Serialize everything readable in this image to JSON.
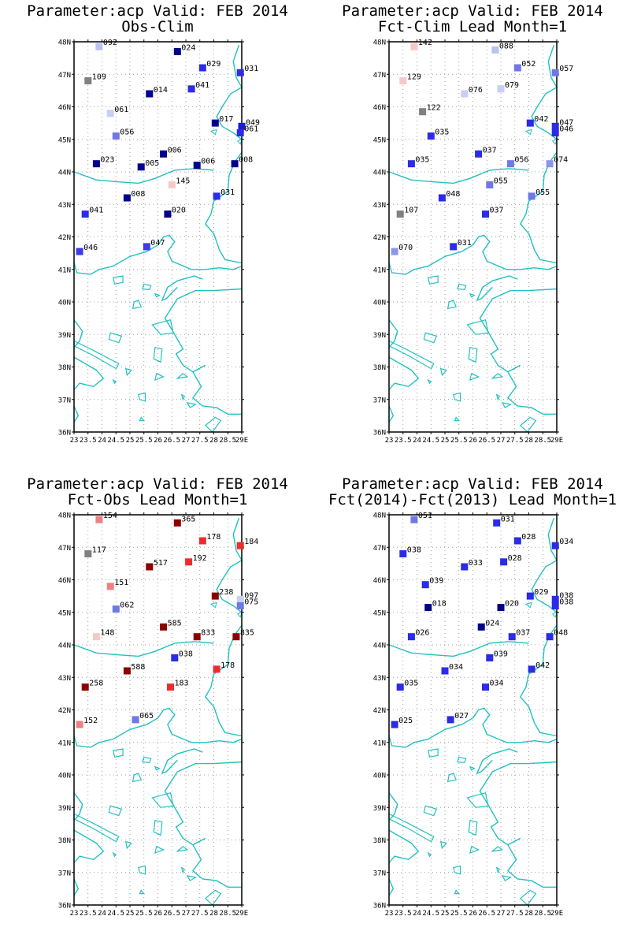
{
  "map": {
    "lon_range": [
      23,
      29
    ],
    "lat_range": [
      36,
      48
    ],
    "lat_ticks": [
      "48N",
      "47N",
      "46N",
      "45N",
      "44N",
      "43N",
      "42N",
      "41N",
      "40N",
      "39N",
      "38N",
      "37N",
      "36N"
    ],
    "lon_ticks": [
      "23",
      "23.5",
      "24",
      "24.5",
      "25",
      "25.5",
      "26",
      "26.5",
      "27",
      "27.5",
      "28",
      "28.5",
      "29E"
    ],
    "coast_color": "#22c1c1",
    "grid_color": "#888888"
  },
  "panels": [
    {
      "title1": "Parameter:acp Valid: FEB 2014",
      "title2": "Obs-Clim",
      "stations": [
        {
          "lon": 23.9,
          "lat": 47.85,
          "label": "092",
          "color": "#b8c3f2"
        },
        {
          "lon": 26.7,
          "lat": 47.7,
          "label": "024",
          "color": "#00008b"
        },
        {
          "lon": 27.6,
          "lat": 47.2,
          "label": "029",
          "color": "#2b2be8"
        },
        {
          "lon": 28.95,
          "lat": 47.05,
          "label": "031",
          "color": "#2b2be8"
        },
        {
          "lon": 23.5,
          "lat": 46.8,
          "label": "109",
          "color": "#808080"
        },
        {
          "lon": 25.7,
          "lat": 46.4,
          "label": "014",
          "color": "#00008b"
        },
        {
          "lon": 27.2,
          "lat": 46.55,
          "label": "041",
          "color": "#2b2be8"
        },
        {
          "lon": 24.3,
          "lat": 45.8,
          "label": "061",
          "color": "#c8cff5"
        },
        {
          "lon": 28.05,
          "lat": 45.5,
          "label": "017",
          "color": "#00008b"
        },
        {
          "lon": 29.0,
          "lat": 45.4,
          "label": "049",
          "color": "#1a1ad8"
        },
        {
          "lon": 24.5,
          "lat": 45.1,
          "label": "056",
          "color": "#6e78e6"
        },
        {
          "lon": 28.95,
          "lat": 45.2,
          "label": "061",
          "color": "#2b2be8"
        },
        {
          "lon": 26.2,
          "lat": 44.55,
          "label": "006",
          "color": "#00008b"
        },
        {
          "lon": 23.8,
          "lat": 44.25,
          "label": "023",
          "color": "#00008b"
        },
        {
          "lon": 25.4,
          "lat": 44.15,
          "label": "005",
          "color": "#00008b"
        },
        {
          "lon": 27.4,
          "lat": 44.2,
          "label": "006",
          "color": "#00008b"
        },
        {
          "lon": 28.75,
          "lat": 44.25,
          "label": "008",
          "color": "#00008b"
        },
        {
          "lon": 26.5,
          "lat": 43.6,
          "label": "145",
          "color": "#f7c8c8"
        },
        {
          "lon": 24.9,
          "lat": 43.2,
          "label": "008",
          "color": "#00008b"
        },
        {
          "lon": 28.1,
          "lat": 43.25,
          "label": "031",
          "color": "#2b2be8"
        },
        {
          "lon": 23.4,
          "lat": 42.7,
          "label": "041",
          "color": "#2b2be8"
        },
        {
          "lon": 26.35,
          "lat": 42.7,
          "label": "020",
          "color": "#00008b"
        },
        {
          "lon": 25.6,
          "lat": 41.7,
          "label": "047",
          "color": "#3b3bea"
        },
        {
          "lon": 23.2,
          "lat": 41.55,
          "label": "046",
          "color": "#3b3bea"
        }
      ]
    },
    {
      "title1": "Parameter:acp Valid: FEB 2014",
      "title2": "Fct-Clim Lead Month=1",
      "stations": [
        {
          "lon": 23.9,
          "lat": 47.85,
          "label": "142",
          "color": "#f7c8c8"
        },
        {
          "lon": 26.8,
          "lat": 47.75,
          "label": "088",
          "color": "#b8c3f2"
        },
        {
          "lon": 27.6,
          "lat": 47.2,
          "label": "052",
          "color": "#6e78e6"
        },
        {
          "lon": 28.95,
          "lat": 47.05,
          "label": "057",
          "color": "#6e78e6"
        },
        {
          "lon": 23.5,
          "lat": 46.8,
          "label": "129",
          "color": "#f7c8c8"
        },
        {
          "lon": 25.7,
          "lat": 46.4,
          "label": "076",
          "color": "#c8cff5"
        },
        {
          "lon": 27.0,
          "lat": 46.55,
          "label": "079",
          "color": "#c8cff5"
        },
        {
          "lon": 24.2,
          "lat": 45.85,
          "label": "122",
          "color": "#808080"
        },
        {
          "lon": 28.05,
          "lat": 45.5,
          "label": "042",
          "color": "#2b2be8"
        },
        {
          "lon": 28.95,
          "lat": 45.4,
          "label": "047",
          "color": "#2b2be8"
        },
        {
          "lon": 24.5,
          "lat": 45.1,
          "label": "035",
          "color": "#2b2be8"
        },
        {
          "lon": 28.95,
          "lat": 45.2,
          "label": "046",
          "color": "#2b2be8"
        },
        {
          "lon": 26.2,
          "lat": 44.55,
          "label": "037",
          "color": "#2b2be8"
        },
        {
          "lon": 23.8,
          "lat": 44.25,
          "label": "035",
          "color": "#2b2be8"
        },
        {
          "lon": 27.35,
          "lat": 44.25,
          "label": "056",
          "color": "#6e78e6"
        },
        {
          "lon": 28.75,
          "lat": 44.25,
          "label": "074",
          "color": "#8c96ea"
        },
        {
          "lon": 26.6,
          "lat": 43.6,
          "label": "055",
          "color": "#6e78e6"
        },
        {
          "lon": 24.9,
          "lat": 43.2,
          "label": "048",
          "color": "#2b2be8"
        },
        {
          "lon": 28.1,
          "lat": 43.25,
          "label": "055",
          "color": "#6e78e6"
        },
        {
          "lon": 23.4,
          "lat": 42.7,
          "label": "107",
          "color": "#808080"
        },
        {
          "lon": 26.45,
          "lat": 42.7,
          "label": "037",
          "color": "#2b2be8"
        },
        {
          "lon": 25.3,
          "lat": 41.7,
          "label": "031",
          "color": "#2b2be8"
        },
        {
          "lon": 23.2,
          "lat": 41.55,
          "label": "070",
          "color": "#8c96ea"
        }
      ]
    },
    {
      "title1": "Parameter:acp Valid: FEB 2014",
      "title2": "Fct-Obs Lead Month=1",
      "stations": [
        {
          "lon": 23.9,
          "lat": 47.85,
          "label": "154",
          "color": "#f08080"
        },
        {
          "lon": 26.7,
          "lat": 47.75,
          "label": "365",
          "color": "#8b0000"
        },
        {
          "lon": 27.6,
          "lat": 47.2,
          "label": "178",
          "color": "#ee2c2c"
        },
        {
          "lon": 28.95,
          "lat": 47.05,
          "label": "184",
          "color": "#ee2c2c"
        },
        {
          "lon": 23.5,
          "lat": 46.8,
          "label": "117",
          "color": "#808080"
        },
        {
          "lon": 25.7,
          "lat": 46.4,
          "label": "517",
          "color": "#8b0000"
        },
        {
          "lon": 27.1,
          "lat": 46.55,
          "label": "192",
          "color": "#ee2c2c"
        },
        {
          "lon": 24.3,
          "lat": 45.8,
          "label": "151",
          "color": "#f08080"
        },
        {
          "lon": 28.05,
          "lat": 45.5,
          "label": "238",
          "color": "#8b0000"
        },
        {
          "lon": 28.95,
          "lat": 45.4,
          "label": "097",
          "color": "#c8cff5"
        },
        {
          "lon": 24.5,
          "lat": 45.1,
          "label": "062",
          "color": "#6e78e6"
        },
        {
          "lon": 28.95,
          "lat": 45.2,
          "label": "075",
          "color": "#6e78e6"
        },
        {
          "lon": 26.2,
          "lat": 44.55,
          "label": "585",
          "color": "#8b0000"
        },
        {
          "lon": 23.8,
          "lat": 44.25,
          "label": "148",
          "color": "#f7c8c8"
        },
        {
          "lon": 27.4,
          "lat": 44.25,
          "label": "833",
          "color": "#8b0000"
        },
        {
          "lon": 28.8,
          "lat": 44.25,
          "label": "835",
          "color": "#8b0000"
        },
        {
          "lon": 26.6,
          "lat": 43.6,
          "label": "038",
          "color": "#2b2be8"
        },
        {
          "lon": 24.9,
          "lat": 43.2,
          "label": "588",
          "color": "#8b0000"
        },
        {
          "lon": 28.1,
          "lat": 43.25,
          "label": "178",
          "color": "#ee2c2c"
        },
        {
          "lon": 23.4,
          "lat": 42.7,
          "label": "258",
          "color": "#8b0000"
        },
        {
          "lon": 26.45,
          "lat": 42.7,
          "label": "183",
          "color": "#ee2c2c"
        },
        {
          "lon": 25.2,
          "lat": 41.7,
          "label": "065",
          "color": "#6e78e6"
        },
        {
          "lon": 23.2,
          "lat": 41.55,
          "label": "152",
          "color": "#f08080"
        }
      ]
    },
    {
      "title1": "Parameter:acp Valid: FEB 2014",
      "title2": "Fct(2014)-Fct(2013) Lead Month=1",
      "stations": [
        {
          "lon": 23.9,
          "lat": 47.85,
          "label": "051",
          "color": "#6e78e6"
        },
        {
          "lon": 26.85,
          "lat": 47.75,
          "label": "031",
          "color": "#2b2be8"
        },
        {
          "lon": 27.6,
          "lat": 47.2,
          "label": "028",
          "color": "#2b2be8"
        },
        {
          "lon": 28.95,
          "lat": 47.05,
          "label": "034",
          "color": "#2b2be8"
        },
        {
          "lon": 23.5,
          "lat": 46.8,
          "label": "038",
          "color": "#2b2be8"
        },
        {
          "lon": 25.7,
          "lat": 46.4,
          "label": "033",
          "color": "#2b2be8"
        },
        {
          "lon": 27.1,
          "lat": 46.55,
          "label": "028",
          "color": "#2b2be8"
        },
        {
          "lon": 24.3,
          "lat": 45.85,
          "label": "039",
          "color": "#2b2be8"
        },
        {
          "lon": 28.05,
          "lat": 45.5,
          "label": "029",
          "color": "#2b2be8"
        },
        {
          "lon": 28.95,
          "lat": 45.4,
          "label": "038",
          "color": "#2b2be8"
        },
        {
          "lon": 24.4,
          "lat": 45.15,
          "label": "018",
          "color": "#00008b"
        },
        {
          "lon": 28.95,
          "lat": 45.2,
          "label": "038",
          "color": "#2b2be8"
        },
        {
          "lon": 27.0,
          "lat": 45.15,
          "label": "020",
          "color": "#00008b"
        },
        {
          "lon": 26.3,
          "lat": 44.55,
          "label": "024",
          "color": "#00008b"
        },
        {
          "lon": 23.8,
          "lat": 44.25,
          "label": "026",
          "color": "#2b2be8"
        },
        {
          "lon": 27.4,
          "lat": 44.25,
          "label": "037",
          "color": "#2b2be8"
        },
        {
          "lon": 28.75,
          "lat": 44.25,
          "label": "048",
          "color": "#2b2be8"
        },
        {
          "lon": 26.6,
          "lat": 43.6,
          "label": "039",
          "color": "#2b2be8"
        },
        {
          "lon": 25.0,
          "lat": 43.2,
          "label": "034",
          "color": "#2b2be8"
        },
        {
          "lon": 28.1,
          "lat": 43.25,
          "label": "042",
          "color": "#2b2be8"
        },
        {
          "lon": 23.4,
          "lat": 42.7,
          "label": "035",
          "color": "#2b2be8"
        },
        {
          "lon": 26.45,
          "lat": 42.7,
          "label": "034",
          "color": "#2b2be8"
        },
        {
          "lon": 25.2,
          "lat": 41.7,
          "label": "027",
          "color": "#2b2be8"
        },
        {
          "lon": 23.2,
          "lat": 41.55,
          "label": "025",
          "color": "#2b2be8"
        }
      ]
    }
  ]
}
